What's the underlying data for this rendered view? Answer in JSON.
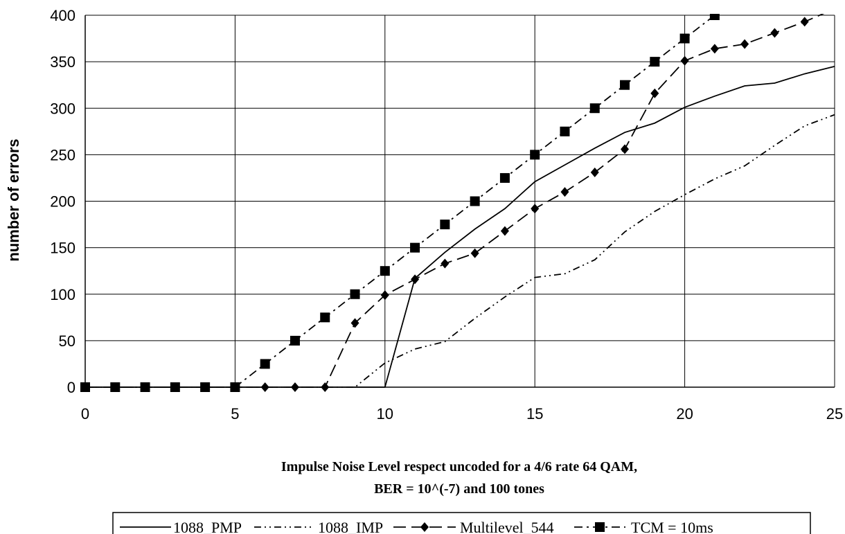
{
  "chart_data": {
    "type": "line",
    "title": "",
    "xlabel_line1": "Impulse Noise Level respect uncoded for a 4/6 rate 64 QAM,",
    "xlabel_line2": "BER = 10^(-7) and 100 tones",
    "ylabel": "number of errors",
    "xlim": [
      0,
      25
    ],
    "ylim": [
      0,
      400
    ],
    "xticks": [
      0,
      5,
      10,
      15,
      20,
      25
    ],
    "yticks": [
      0,
      50,
      100,
      150,
      200,
      250,
      300,
      350,
      400
    ],
    "grid": true,
    "legend_position": "bottom",
    "series": [
      {
        "name": "1088_PMP",
        "style": "solid",
        "marker": "none",
        "color": "#000000",
        "x": [
          0,
          1,
          2,
          3,
          4,
          5,
          6,
          7,
          8,
          9,
          10,
          11,
          12,
          13,
          14,
          15,
          16,
          17,
          18,
          19,
          20,
          21,
          22,
          23,
          24,
          25
        ],
        "y": [
          0,
          0,
          0,
          0,
          0,
          0,
          0,
          0,
          0,
          0,
          0,
          117,
          145,
          170,
          192,
          221,
          239,
          257,
          274,
          284,
          301,
          313,
          324,
          327,
          337,
          345
        ]
      },
      {
        "name": "1088_IMP",
        "style": "dashdotdot",
        "marker": "none",
        "color": "#000000",
        "x": [
          0,
          1,
          2,
          3,
          4,
          5,
          6,
          7,
          8,
          9,
          10,
          11,
          12,
          13,
          14,
          15,
          16,
          17,
          18,
          19,
          20,
          21,
          22,
          23,
          24,
          25
        ],
        "y": [
          0,
          0,
          0,
          0,
          0,
          0,
          0,
          0,
          0,
          0,
          26,
          41,
          49,
          74,
          97,
          118,
          122,
          137,
          167,
          189,
          207,
          224,
          238,
          260,
          281,
          293
        ]
      },
      {
        "name": "Multilevel_544",
        "style": "dashed",
        "marker": "diamond",
        "color": "#000000",
        "x": [
          0,
          1,
          2,
          3,
          4,
          5,
          6,
          7,
          8,
          9,
          10,
          11,
          12,
          13,
          14,
          15,
          16,
          17,
          18,
          19,
          20,
          21,
          22,
          23,
          24,
          25
        ],
        "y": [
          0,
          0,
          0,
          0,
          0,
          0,
          0,
          0,
          0,
          69,
          99,
          116,
          133,
          144,
          168,
          192,
          210,
          231,
          256,
          316,
          351,
          364,
          369,
          381,
          393,
          407
        ]
      },
      {
        "name": "TCM = 10ms",
        "style": "dashdot",
        "marker": "square",
        "color": "#000000",
        "x": [
          0,
          1,
          2,
          3,
          4,
          5,
          6,
          7,
          8,
          9,
          10,
          11,
          12,
          13,
          14,
          15,
          16,
          17,
          18,
          19,
          20,
          21
        ],
        "y": [
          0,
          0,
          0,
          0,
          0,
          0,
          25,
          50,
          75,
          100,
          125,
          150,
          175,
          200,
          225,
          250,
          275,
          300,
          325,
          350,
          375,
          400
        ]
      }
    ]
  }
}
